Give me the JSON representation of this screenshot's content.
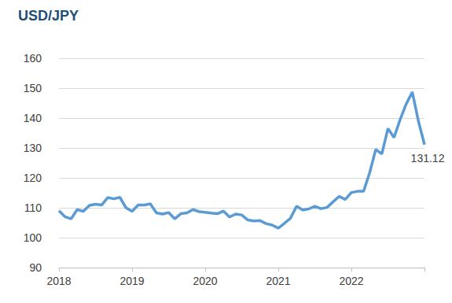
{
  "chart_data": {
    "type": "line",
    "title": "USD/JPY",
    "categories": [
      "2018",
      null,
      null,
      null,
      null,
      null,
      null,
      null,
      null,
      null,
      null,
      null,
      "2019",
      null,
      null,
      null,
      null,
      null,
      null,
      null,
      null,
      null,
      null,
      null,
      "2020",
      null,
      null,
      null,
      null,
      null,
      null,
      null,
      null,
      null,
      null,
      null,
      "2021",
      null,
      null,
      null,
      null,
      null,
      null,
      null,
      null,
      null,
      null,
      null,
      "2022",
      null,
      null,
      null,
      null,
      null,
      null,
      null,
      null,
      null,
      null,
      null,
      null
    ],
    "series": [
      {
        "name": "USD/JPY",
        "color": "#5b9bd5",
        "values": [
          109,
          107,
          106.3,
          109.4,
          108.8,
          110.8,
          111.2,
          110.9,
          113.4,
          113,
          113.5,
          110,
          108.8,
          110.9,
          110.9,
          111.3,
          108.3,
          107.9,
          108.4,
          106.3,
          108,
          108.3,
          109.4,
          108.7,
          108.5,
          108.2,
          108,
          108.9,
          106.9,
          107.9,
          107.6,
          105.9,
          105.6,
          105.7,
          104.7,
          104.2,
          103.2,
          104.8,
          106.5,
          110.5,
          109.3,
          109.6,
          110.5,
          109.7,
          110.1,
          112,
          113.8,
          112.8,
          115.1,
          115.5,
          115.5,
          121.7,
          129.5,
          128,
          136.5,
          133.5,
          139.5,
          144.7,
          148.7,
          139,
          131.12
        ]
      }
    ],
    "annotations": [
      {
        "text": "131.12",
        "index": 60
      }
    ],
    "ylim": [
      90,
      160
    ],
    "yticks": [
      90,
      100,
      110,
      120,
      130,
      140,
      150,
      160
    ],
    "grid": true
  }
}
